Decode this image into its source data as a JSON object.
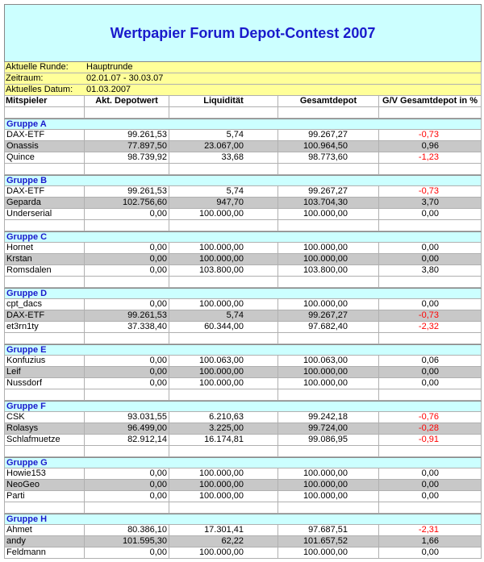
{
  "header": {
    "title": "Wertpapier Forum Depot-Contest 2007"
  },
  "info": [
    [
      "Aktuelle Runde:",
      "Hauptrunde"
    ],
    [
      "Zeitraum:",
      "02.01.07 - 30.03.07"
    ],
    [
      "Aktuelles Datum:",
      "01.03.2007"
    ]
  ],
  "table": {
    "columns": [
      "Mitspieler",
      "Akt. Depotwert",
      "Liquidität",
      "Gesamtdepot",
      "G/V Gesamtdepot in %"
    ],
    "groups": [
      {
        "name": "Gruppe A",
        "rows": [
          [
            "DAX-ETF",
            "99.261,53",
            "5,74",
            "99.267,27",
            "-0,73"
          ],
          [
            "Onassis",
            "77.897,50",
            "23.067,00",
            "100.964,50",
            "0,96"
          ],
          [
            "Quince",
            "98.739,92",
            "33,68",
            "98.773,60",
            "-1,23"
          ]
        ]
      },
      {
        "name": "Gruppe B",
        "rows": [
          [
            "DAX-ETF",
            "99.261,53",
            "5,74",
            "99.267,27",
            "-0,73"
          ],
          [
            "Geparda",
            "102.756,60",
            "947,70",
            "103.704,30",
            "3,70"
          ],
          [
            "Underserial",
            "0,00",
            "100.000,00",
            "100.000,00",
            "0,00"
          ]
        ]
      },
      {
        "name": "Gruppe C",
        "rows": [
          [
            "Hornet",
            "0,00",
            "100.000,00",
            "100.000,00",
            "0,00"
          ],
          [
            "Krstan",
            "0,00",
            "100.000,00",
            "100.000,00",
            "0,00"
          ],
          [
            "Romsdalen",
            "0,00",
            "103.800,00",
            "103.800,00",
            "3,80"
          ]
        ]
      },
      {
        "name": "Gruppe D",
        "rows": [
          [
            "cpt_dacs",
            "0,00",
            "100.000,00",
            "100.000,00",
            "0,00"
          ],
          [
            "DAX-ETF",
            "99.261,53",
            "5,74",
            "99.267,27",
            "-0,73"
          ],
          [
            "et3rn1ty",
            "37.338,40",
            "60.344,00",
            "97.682,40",
            "-2,32"
          ]
        ]
      },
      {
        "name": "Gruppe E",
        "rows": [
          [
            "Konfuzius",
            "0,00",
            "100.063,00",
            "100.063,00",
            "0,06"
          ],
          [
            "Leif",
            "0,00",
            "100.000,00",
            "100.000,00",
            "0,00"
          ],
          [
            "Nussdorf",
            "0,00",
            "100.000,00",
            "100.000,00",
            "0,00"
          ]
        ]
      },
      {
        "name": "Gruppe F",
        "rows": [
          [
            "CSK",
            "93.031,55",
            "6.210,63",
            "99.242,18",
            "-0,76"
          ],
          [
            "Rolasys",
            "96.499,00",
            "3.225,00",
            "99.724,00",
            "-0,28"
          ],
          [
            "Schlafmuetze",
            "82.912,14",
            "16.174,81",
            "99.086,95",
            "-0,91"
          ]
        ]
      },
      {
        "name": "Gruppe G",
        "rows": [
          [
            "Howie153",
            "0,00",
            "100.000,00",
            "100.000,00",
            "0,00"
          ],
          [
            "NeoGeo",
            "0,00",
            "100.000,00",
            "100.000,00",
            "0,00"
          ],
          [
            "Parti",
            "0,00",
            "100.000,00",
            "100.000,00",
            "0,00"
          ]
        ]
      },
      {
        "name": "Gruppe H",
        "rows": [
          [
            "Ahmet",
            "80.386,10",
            "17.301,41",
            "97.687,51",
            "-2,31"
          ],
          [
            "andy",
            "101.595,30",
            "62,22",
            "101.657,52",
            "1,66"
          ],
          [
            "Feldmann",
            "0,00",
            "100.000,00",
            "100.000,00",
            "0,00"
          ]
        ]
      }
    ]
  }
}
